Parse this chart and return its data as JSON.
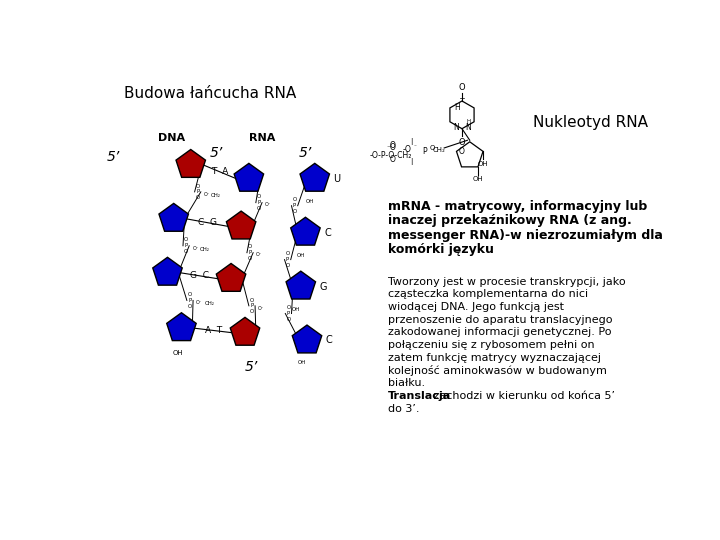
{
  "title": "Budowa łańcucha RNA",
  "nukleotyd_label": "Nukleotyd RNA",
  "dna_label": "DNA",
  "rna_label": "RNA",
  "five_prime_top_dna": "5’",
  "five_prime_top_rna": "5’",
  "five_prime_bot_dna": "5’",
  "five_prime_bot_rna": "5’",
  "background_color": "#ffffff",
  "text_color": "#000000",
  "blue_color": "#0000cc",
  "red_color": "#aa0000",
  "mrna_lines": [
    "mRNA - matrycowy, informacyjny lub",
    "inaczej przekaźnikowy RNA (z ang.",
    "messenger RNA)-w niezrozumiałym dla",
    "komórki języku"
  ],
  "normal_lines": [
    "Tworzony jest w procesie transkrypcji, jako",
    "cząsteczka komplementarna do nici",
    "wiodącej DNA. Jego funkcją jest",
    "przenoszenie do aparatu translacyjnego",
    "zakodowanej informacji genetycznej. Po",
    "połączeniu się z rybosomem pełni on",
    "zatem funkcję matrycy wyznaczającej",
    "kolejność aminokwasów w budowanym",
    "białku."
  ],
  "translacja_line1": "Translacja zachodzi w kierunku od końca 5’",
  "translacja_line2": "do 3’.",
  "dna_pairs": [
    {
      "left_color": "#aa0000",
      "right_color": "#0000cc",
      "label": "T  A"
    },
    {
      "left_color": "#0000cc",
      "right_color": "#aa0000",
      "label": "C  G"
    },
    {
      "left_color": "#0000cc",
      "right_color": "#aa0000",
      "label": "G  C"
    },
    {
      "left_color": "#0000cc",
      "right_color": "#aa0000",
      "label": "A  T"
    }
  ],
  "rna_bases": [
    "U",
    "C",
    "G",
    "C"
  ]
}
